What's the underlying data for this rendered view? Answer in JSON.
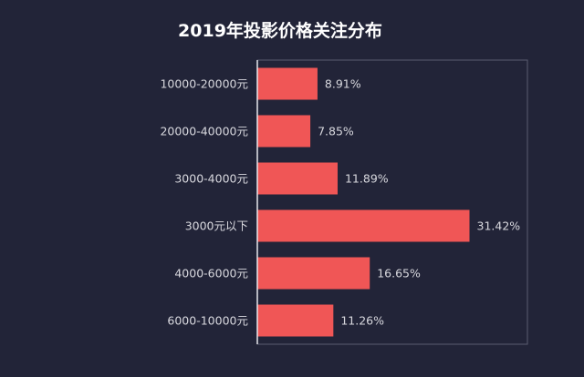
{
  "chart_data": {
    "type": "bar",
    "orientation": "horizontal",
    "title": "2019年投影价格关注分布",
    "categories": [
      "10000-20000元",
      "20000-40000元",
      "3000-4000元",
      "3000元以下",
      "4000-6000元",
      "6000-10000元"
    ],
    "values": [
      8.91,
      7.85,
      11.89,
      31.42,
      16.65,
      11.26
    ],
    "value_labels": [
      "8.91%",
      "7.85%",
      "11.89%",
      "31.42%",
      "16.65%",
      "11.26%"
    ],
    "xlim": [
      0,
      40
    ],
    "unit": "%",
    "grid": false,
    "legend": "none",
    "colors": {
      "background": "#222438",
      "bar": "#f05656",
      "frame": "#5a5c70",
      "axis": "#e8e8ee",
      "text": "#d8d8de",
      "title": "#ffffff"
    }
  }
}
